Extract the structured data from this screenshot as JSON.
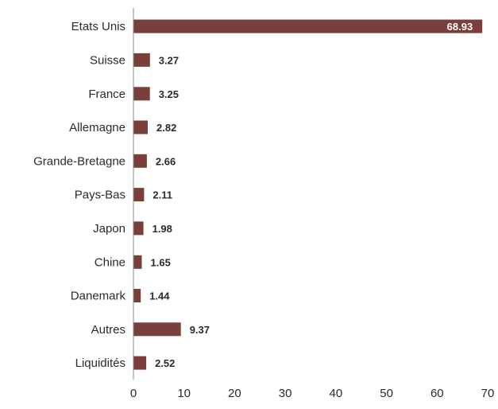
{
  "chart_data": {
    "type": "bar",
    "orientation": "horizontal",
    "categories": [
      "Etats Unis",
      "Suisse",
      "France",
      "Allemagne",
      "Grande-Bretagne",
      "Pays-Bas",
      "Japon",
      "Chine",
      "Danemark",
      "Autres",
      "Liquidités"
    ],
    "values": [
      68.93,
      3.27,
      3.25,
      2.82,
      2.66,
      2.11,
      1.98,
      1.65,
      1.44,
      9.37,
      2.52
    ],
    "value_labels": [
      "68.93",
      "3.27",
      "3.25",
      "2.82",
      "2.66",
      "2.11",
      "1.98",
      "1.65",
      "1.44",
      "9.37",
      "2.52"
    ],
    "xticks": [
      "0",
      "10",
      "20",
      "30",
      "40",
      "50",
      "60",
      "70"
    ],
    "xlim": [
      0,
      70
    ],
    "title": "",
    "xlabel": "",
    "ylabel": "",
    "grid": false,
    "legend": "none",
    "bar_color": "#7a3f3a"
  }
}
